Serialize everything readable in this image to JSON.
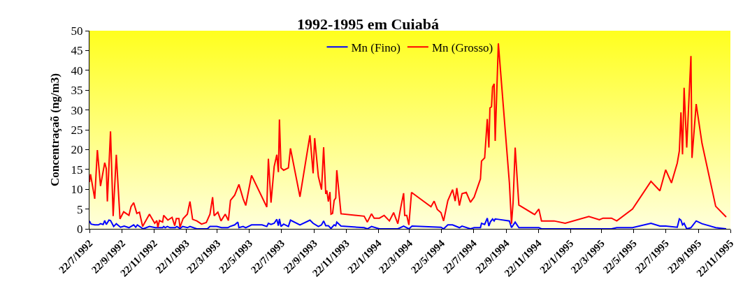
{
  "chart_data": {
    "type": "line",
    "title": "1992-1995 em Cuiabá",
    "ylabel": "Concentraçaõ (ng/m3)",
    "legend": "top",
    "xlim": [
      "1992-07-22",
      "1995-11-22"
    ],
    "xticks": [
      {
        "value": "1992-07-22",
        "label": "22/7/1992"
      },
      {
        "value": "1992-09-22",
        "label": "22/9/1992"
      },
      {
        "value": "1992-11-22",
        "label": "22/11/1992"
      },
      {
        "value": "1993-01-22",
        "label": "22/1/1993"
      },
      {
        "value": "1993-03-22",
        "label": "22/3/1993"
      },
      {
        "value": "1993-05-22",
        "label": "22/5/1993"
      },
      {
        "value": "1993-07-22",
        "label": "22/7/1993"
      },
      {
        "value": "1993-09-22",
        "label": "22/9/1993"
      },
      {
        "value": "1993-11-22",
        "label": "22/11/1993"
      },
      {
        "value": "1994-01-22",
        "label": "22/1/1994"
      },
      {
        "value": "1994-03-22",
        "label": "22/3/1994"
      },
      {
        "value": "1994-05-22",
        "label": "22/5/1994"
      },
      {
        "value": "1994-07-22",
        "label": "22/7/1994"
      },
      {
        "value": "1994-09-22",
        "label": "22/9/1994"
      },
      {
        "value": "1994-11-22",
        "label": "22/11/1994"
      },
      {
        "value": "1995-01-22",
        "label": "22/1/1995"
      },
      {
        "value": "1995-03-22",
        "label": "22/3/1995"
      },
      {
        "value": "1995-05-22",
        "label": "22/5/1995"
      },
      {
        "value": "1995-07-22",
        "label": "22/7/1995"
      },
      {
        "value": "1995-09-22",
        "label": "22/9/1995"
      },
      {
        "value": "1995-11-22",
        "label": "22/11/1995"
      }
    ],
    "ylim": [
      0,
      50
    ],
    "yticks": [
      0,
      5,
      10,
      15,
      20,
      25,
      30,
      35,
      40,
      45,
      50
    ],
    "series": [
      {
        "name": "Mn (Fino)",
        "color": "#0000ff",
        "x": [
          "1992-07-22",
          "1992-07-25",
          "1992-08-01",
          "1992-08-08",
          "1992-08-12",
          "1992-08-17",
          "1992-08-20",
          "1992-08-23",
          "1992-08-28",
          "1992-08-31",
          "1992-09-06",
          "1992-09-11",
          "1992-09-19",
          "1992-09-26",
          "1992-10-05",
          "1992-10-14",
          "1992-10-18",
          "1992-10-21",
          "1992-11-01",
          "1992-11-13",
          "1992-11-24",
          "1992-12-08",
          "1992-12-10",
          "1992-12-13",
          "1992-12-17",
          "1992-12-22",
          "1993-01-01",
          "1993-01-04",
          "1993-01-10",
          "1993-01-15",
          "1993-01-24",
          "1993-01-29",
          "1993-02-11",
          "1993-03-03",
          "1993-03-08",
          "1993-03-21",
          "1993-03-30",
          "1993-04-11",
          "1993-04-15",
          "1993-04-24",
          "1993-04-30",
          "1993-05-02",
          "1993-05-10",
          "1993-05-15",
          "1993-05-26",
          "1993-06-15",
          "1993-06-24",
          "1993-06-27",
          "1993-07-02",
          "1993-07-08",
          "1993-07-13",
          "1993-07-16",
          "1993-07-18",
          "1993-07-21",
          "1993-07-26",
          "1993-08-04",
          "1993-08-08",
          "1993-08-26",
          "1993-09-14",
          "1993-09-20",
          "1993-09-30",
          "1993-10-06",
          "1993-10-10",
          "1993-10-14",
          "1993-10-19",
          "1993-10-24",
          "1993-10-30",
          "1993-11-02",
          "1993-11-04",
          "1993-11-12",
          "1993-12-26",
          "1994-01-01",
          "1994-01-09",
          "1994-01-24",
          "1994-02-12",
          "1994-02-28",
          "1994-03-11",
          "1994-03-21",
          "1994-03-27",
          "1994-05-21",
          "1994-05-26",
          "1994-06-03",
          "1994-06-12",
          "1994-06-25",
          "1994-06-30",
          "1994-07-16",
          "1994-07-23",
          "1994-08-04",
          "1994-08-06",
          "1994-08-12",
          "1994-08-17",
          "1994-08-20",
          "1994-08-23",
          "1994-08-27",
          "1994-08-30",
          "1994-09-01",
          "1994-09-07",
          "1994-09-28",
          "1994-10-02",
          "1994-10-09",
          "1994-10-16",
          "1994-11-23",
          "1994-11-28",
          "1995-04-10",
          "1995-04-20",
          "1995-05-20",
          "1995-06-24",
          "1995-07-11",
          "1995-07-22",
          "1995-08-13",
          "1995-08-17",
          "1995-08-20",
          "1995-08-23",
          "1995-08-26",
          "1995-08-31",
          "1995-09-08",
          "1995-09-18",
          "1995-09-29",
          "1995-10-25",
          "1995-11-14"
        ],
        "values": [
          2.0,
          1.2,
          1.0,
          1.0,
          1.3,
          1.1,
          2.1,
          1.1,
          2.2,
          2.1,
          0.6,
          1.3,
          0.4,
          0.7,
          0.3,
          1.0,
          0.4,
          1.0,
          0.0,
          0.6,
          0.3,
          0.3,
          0.6,
          0.3,
          0.6,
          0.3,
          0.3,
          0.6,
          0.1,
          0.6,
          0.3,
          0.6,
          0.0,
          0.0,
          0.6,
          0.6,
          0.3,
          0.3,
          0.6,
          1.0,
          1.7,
          0.3,
          0.6,
          0.3,
          1.0,
          1.0,
          0.6,
          1.4,
          1.1,
          1.4,
          2.4,
          0.8,
          2.5,
          0.6,
          1.2,
          0.6,
          2.2,
          1.0,
          2.2,
          1.4,
          0.6,
          1.0,
          2.0,
          0.8,
          0.8,
          0.1,
          1.0,
          0.8,
          1.7,
          0.7,
          0.3,
          0.0,
          0.6,
          0.0,
          0.0,
          0.0,
          0.7,
          0.0,
          0.7,
          0.4,
          0.0,
          1.0,
          1.0,
          0.3,
          0.7,
          0.0,
          0.3,
          0.3,
          1.4,
          1.1,
          2.7,
          0.7,
          1.8,
          2.5,
          2.0,
          2.5,
          2.4,
          2.0,
          0.3,
          1.7,
          0.3,
          0.3,
          0.0,
          0.0,
          0.3,
          0.3,
          1.4,
          0.7,
          0.7,
          0.4,
          2.5,
          2.2,
          1.0,
          1.4,
          0.0,
          0.3,
          2.0,
          1.3,
          0.3,
          0.0
        ]
      },
      {
        "name": "Mn (Grosso)",
        "color": "#ff0000",
        "x": [
          "1992-07-22",
          "1992-07-24",
          "1992-08-01",
          "1992-08-06",
          "1992-08-12",
          "1992-08-20",
          "1992-08-23",
          "1992-08-25",
          "1992-08-31",
          "1992-09-05",
          "1992-09-11",
          "1992-09-18",
          "1992-09-25",
          "1992-10-05",
          "1992-10-09",
          "1992-10-14",
          "1992-10-20",
          "1992-10-25",
          "1992-10-31",
          "1992-11-13",
          "1992-11-23",
          "1992-11-27",
          "1992-11-29",
          "1992-12-02",
          "1992-12-08",
          "1992-12-10",
          "1992-12-18",
          "1992-12-26",
          "1992-12-31",
          "1993-01-03",
          "1993-01-08",
          "1993-01-10",
          "1993-01-16",
          "1993-01-24",
          "1993-01-29",
          "1993-02-03",
          "1993-02-11",
          "1993-02-20",
          "1993-03-01",
          "1993-03-08",
          "1993-03-13",
          "1993-03-16",
          "1993-03-23",
          "1993-03-29",
          "1993-04-06",
          "1993-04-12",
          "1993-04-16",
          "1993-04-24",
          "1993-05-02",
          "1993-05-10",
          "1993-05-15",
          "1993-05-26",
          "1993-06-24",
          "1993-06-27",
          "1993-07-02",
          "1993-07-08",
          "1993-07-13",
          "1993-07-16",
          "1993-07-18",
          "1993-07-21",
          "1993-07-26",
          "1993-08-04",
          "1993-08-08",
          "1993-08-26",
          "1993-09-14",
          "1993-09-20",
          "1993-09-23",
          "1993-09-30",
          "1993-10-06",
          "1993-10-10",
          "1993-10-14",
          "1993-10-16",
          "1993-10-19",
          "1993-10-22",
          "1993-10-24",
          "1993-10-27",
          "1993-10-30",
          "1993-11-02",
          "1993-11-04",
          "1993-11-12",
          "1993-12-26",
          "1994-01-01",
          "1994-01-09",
          "1994-01-14",
          "1994-01-24",
          "1994-02-02",
          "1994-02-12",
          "1994-02-20",
          "1994-02-28",
          "1994-03-06",
          "1994-03-11",
          "1994-03-13",
          "1994-03-17",
          "1994-03-21",
          "1994-03-26",
          "1994-05-02",
          "1994-05-08",
          "1994-05-14",
          "1994-05-21",
          "1994-05-26",
          "1994-06-03",
          "1994-06-12",
          "1994-06-17",
          "1994-06-20",
          "1994-06-25",
          "1994-06-30",
          "1994-07-08",
          "1994-07-16",
          "1994-07-23",
          "1994-08-04",
          "1994-08-06",
          "1994-08-12",
          "1994-08-17",
          "1994-08-20",
          "1994-08-22",
          "1994-08-25",
          "1994-08-27",
          "1994-08-30",
          "1994-09-01",
          "1994-09-07",
          "1994-09-28",
          "1994-10-02",
          "1994-10-05",
          "1994-10-09",
          "1994-10-16",
          "1994-11-15",
          "1994-11-23",
          "1994-11-28",
          "1994-12-22",
          "1995-01-12",
          "1995-02-26",
          "1995-03-18",
          "1995-03-25",
          "1995-04-10",
          "1995-04-20",
          "1995-05-20",
          "1995-06-24",
          "1995-07-11",
          "1995-07-22",
          "1995-08-02",
          "1995-08-13",
          "1995-08-17",
          "1995-08-20",
          "1995-08-23",
          "1995-08-26",
          "1995-08-31",
          "1995-09-08",
          "1995-09-10",
          "1995-09-18",
          "1995-09-29",
          "1995-10-25",
          "1995-11-14"
        ],
        "values": [
          11.8,
          13.8,
          7.6,
          19.9,
          10.8,
          16.7,
          15.2,
          6.9,
          24.6,
          3.2,
          18.7,
          2.5,
          4.3,
          3.4,
          5.6,
          6.6,
          3.9,
          4.2,
          0.6,
          3.7,
          1.4,
          2.1,
          0.4,
          2.1,
          1.7,
          3.4,
          2.2,
          2.9,
          0.8,
          2.6,
          2.6,
          0.4,
          2.6,
          3.7,
          6.9,
          2.4,
          2.0,
          1.2,
          1.6,
          3.7,
          8.0,
          3.3,
          4.2,
          2.0,
          3.7,
          2.1,
          7.2,
          8.5,
          11.2,
          7.6,
          5.9,
          13.5,
          5.5,
          17.7,
          6.6,
          15.7,
          18.7,
          14.3,
          27.6,
          15.4,
          14.8,
          15.4,
          20.3,
          8.1,
          23.6,
          14.0,
          22.9,
          13.2,
          9.9,
          20.6,
          8.8,
          9.7,
          6.9,
          9.3,
          3.7,
          3.9,
          7.2,
          7.8,
          14.8,
          3.8,
          3.2,
          1.7,
          3.8,
          2.7,
          2.7,
          3.4,
          2.0,
          4.1,
          1.3,
          5.7,
          9.0,
          3.4,
          3.4,
          1.0,
          9.2,
          5.6,
          7.0,
          4.9,
          4.1,
          2.0,
          7.1,
          9.9,
          7.0,
          10.3,
          5.9,
          8.9,
          9.2,
          6.7,
          8.0,
          12.6,
          17.1,
          17.9,
          27.7,
          20.5,
          30.5,
          30.8,
          35.8,
          36.6,
          22.2,
          46.8,
          11.6,
          1.3,
          6.6,
          20.5,
          6.0,
          3.6,
          5.0,
          2.0,
          2.0,
          1.4,
          3.1,
          2.3,
          2.7,
          2.7,
          2.0,
          5.0,
          12.0,
          9.6,
          14.9,
          11.6,
          16.6,
          19.7,
          29.4,
          18.8,
          35.6,
          20.5,
          43.6,
          17.9,
          31.5,
          21.6,
          5.7,
          3.0
        ]
      }
    ]
  }
}
